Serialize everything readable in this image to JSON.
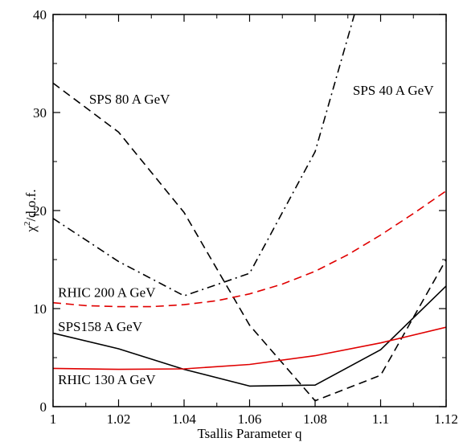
{
  "chart_data": {
    "type": "line",
    "title": "",
    "xlabel": "Tsallis Parameter q",
    "ylabel": "χ²/d.o.f.",
    "ylabel_base": "χ",
    "ylabel_sup": "2",
    "ylabel_rest": "/d.o.f.",
    "xlim": [
      1.0,
      1.12
    ],
    "ylim": [
      0,
      40
    ],
    "xticks": [
      1.0,
      1.02,
      1.04,
      1.06,
      1.08,
      1.1,
      1.12
    ],
    "xtick_labels": [
      "1",
      "1.02",
      "1.04",
      "1.06",
      "1.08",
      "1.1",
      "1.12"
    ],
    "yticks": [
      0,
      10,
      20,
      30,
      40
    ],
    "ytick_labels": [
      "0",
      "10",
      "20",
      "30",
      "40"
    ],
    "grid": false,
    "legend": "inline labels",
    "series": [
      {
        "name": "SPS 80 A GeV",
        "color": "#000000",
        "dash": "dashed",
        "x": [
          1.0,
          1.02,
          1.04,
          1.06,
          1.08,
          1.1,
          1.12
        ],
        "y": [
          33.0,
          28.0,
          19.8,
          8.3,
          0.6,
          3.2,
          15.0
        ]
      },
      {
        "name": "SPS 40 A GeV",
        "color": "#000000",
        "dash": "dashdot",
        "x": [
          1.0,
          1.02,
          1.04,
          1.06,
          1.08,
          1.092
        ],
        "y": [
          19.2,
          14.8,
          11.3,
          13.6,
          26.0,
          40.0
        ]
      },
      {
        "name": "RHIC 200 A GeV",
        "color": "#e00000",
        "dash": "dashed",
        "x": [
          1.0,
          1.01,
          1.02,
          1.03,
          1.04,
          1.05,
          1.06,
          1.07,
          1.08,
          1.09,
          1.1,
          1.11,
          1.12
        ],
        "y": [
          10.6,
          10.3,
          10.2,
          10.2,
          10.4,
          10.8,
          11.5,
          12.5,
          13.8,
          15.5,
          17.5,
          19.7,
          22.0
        ]
      },
      {
        "name": "SPS158 A GeV",
        "color": "#000000",
        "dash": "solid",
        "x": [
          1.0,
          1.02,
          1.04,
          1.06,
          1.08,
          1.1,
          1.12
        ],
        "y": [
          7.5,
          5.9,
          3.8,
          2.1,
          2.2,
          5.8,
          12.3
        ]
      },
      {
        "name": "RHIC 130 A GeV",
        "color": "#e00000",
        "dash": "solid",
        "x": [
          1.0,
          1.02,
          1.04,
          1.06,
          1.08,
          1.1,
          1.12
        ],
        "y": [
          3.9,
          3.8,
          3.85,
          4.3,
          5.2,
          6.5,
          8.1
        ]
      }
    ],
    "annotations": [
      {
        "text": "SPS 80 A GeV",
        "x": 1.011,
        "y": 30.9
      },
      {
        "text": "SPS 40 A GeV",
        "x": 1.0915,
        "y": 31.8
      },
      {
        "text": "RHIC 200 A GeV",
        "x": 1.0015,
        "y": 11.2
      },
      {
        "text": "SPS158 A GeV",
        "x": 1.0015,
        "y": 7.7
      },
      {
        "text": "RHIC 130 A GeV",
        "x": 1.0015,
        "y": 2.3
      }
    ]
  }
}
